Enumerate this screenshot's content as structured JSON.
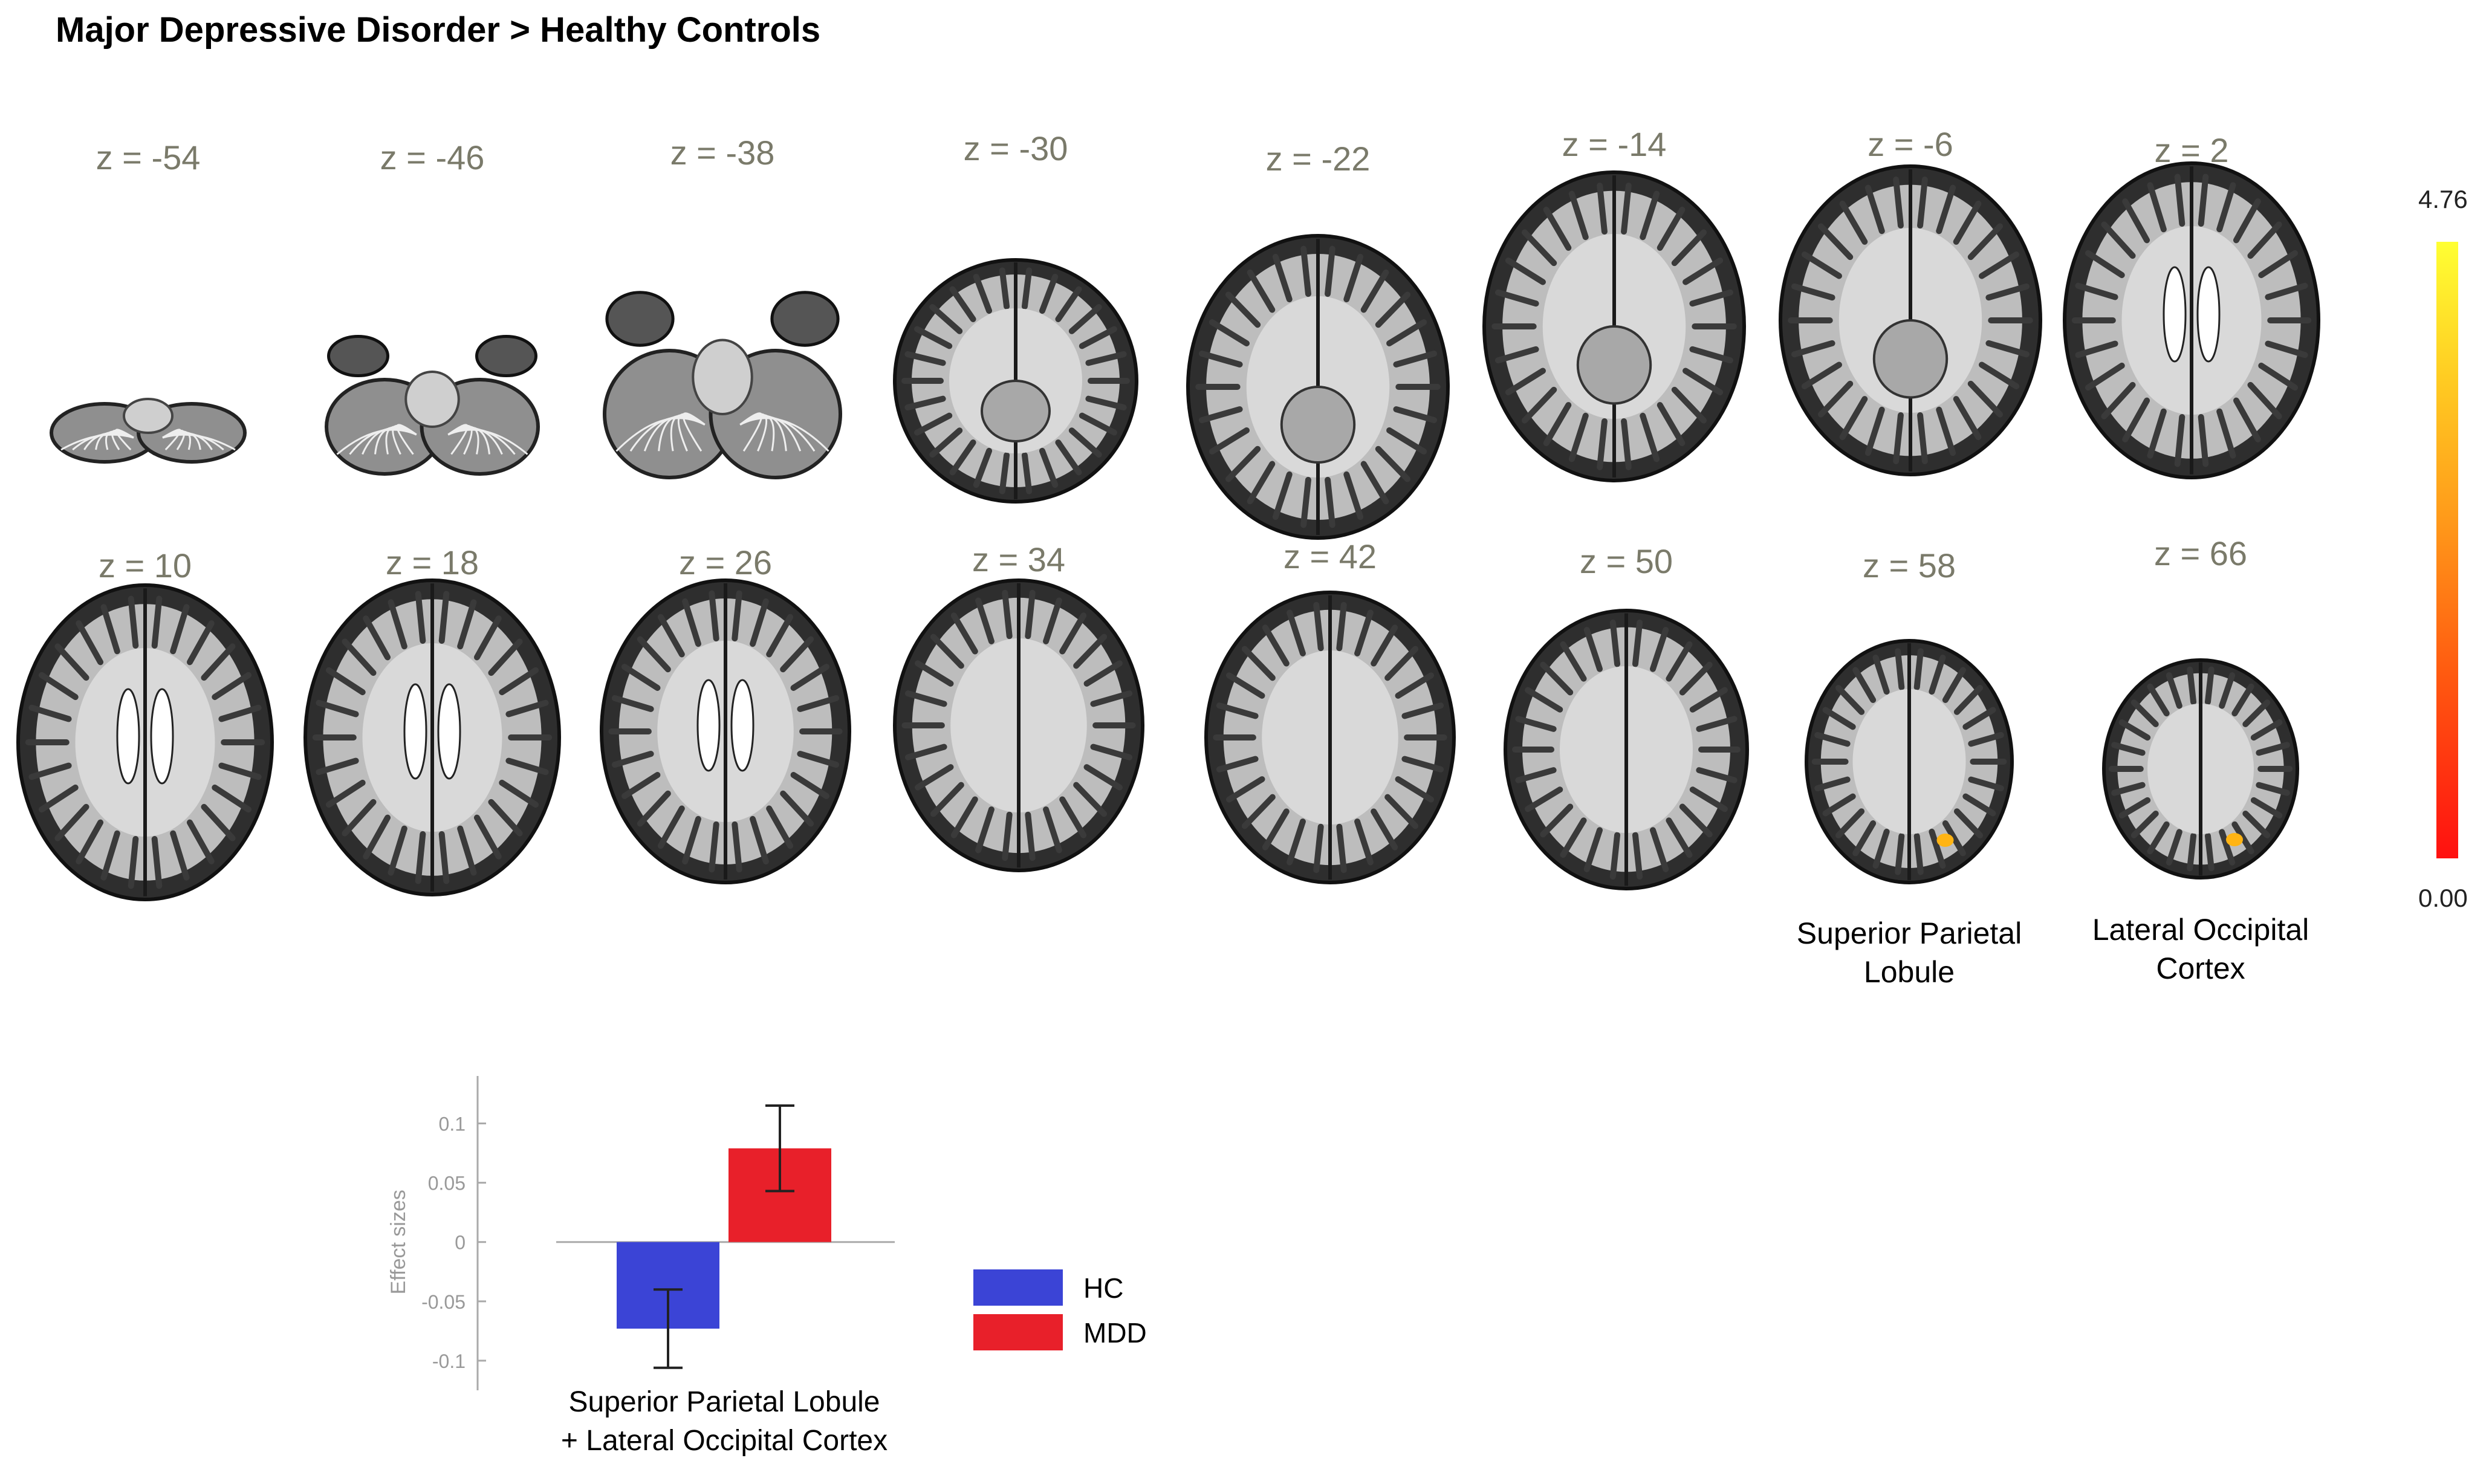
{
  "title": "Major Depressive Disorder > Healthy Controls",
  "slices_row1": [
    {
      "z": "z = -54",
      "kind": "cereb_small"
    },
    {
      "z": "z = -46",
      "kind": "cereb_temp"
    },
    {
      "z": "z = -38",
      "kind": "cereb_wide"
    },
    {
      "z": "z = -30",
      "kind": "lower"
    },
    {
      "z": "z = -22",
      "kind": "mid_low"
    },
    {
      "z": "z = -14",
      "kind": "full"
    },
    {
      "z": "z = -6",
      "kind": "full"
    },
    {
      "z": "z = 2",
      "kind": "full_vent"
    }
  ],
  "slices_row2": [
    {
      "z": "z = 10",
      "kind": "full_vent"
    },
    {
      "z": "z = 18",
      "kind": "full_vent"
    },
    {
      "z": "z = 26",
      "kind": "full_small_vent"
    },
    {
      "z": "z = 34",
      "kind": "upper"
    },
    {
      "z": "z = 42",
      "kind": "upper"
    },
    {
      "z": "z = 50",
      "kind": "upper_small"
    },
    {
      "z": "z = 58",
      "kind": "top",
      "blob": true
    },
    {
      "z": "z = 66",
      "kind": "top_small",
      "blob": true
    }
  ],
  "region_labels": [
    "Superior Parietal\nLobule",
    "Lateral Occipital\nCortex"
  ],
  "colorbar": {
    "max": "4.76",
    "min": "0.00",
    "colors": [
      "#ff1010",
      "#ffff33"
    ]
  },
  "chart_data": {
    "type": "bar",
    "categories": [
      "Superior Parietal Lobule\n+ Lateral Occipital Cortex"
    ],
    "series": [
      {
        "name": "HC",
        "values": [
          -0.073
        ],
        "error": [
          0.033
        ],
        "color": "#3b44d6"
      },
      {
        "name": "MDD",
        "values": [
          0.079
        ],
        "error": [
          0.036
        ],
        "color": "#e8202a"
      }
    ],
    "ylabel": "Effect sizes",
    "ylim": [
      -0.125,
      0.14
    ],
    "yticks": [
      "0.1",
      "0.05",
      "0",
      "-0.05",
      "-0.1"
    ],
    "ytick_values": [
      0.1,
      0.05,
      0,
      -0.05,
      -0.1
    ],
    "legend_position": "right"
  }
}
